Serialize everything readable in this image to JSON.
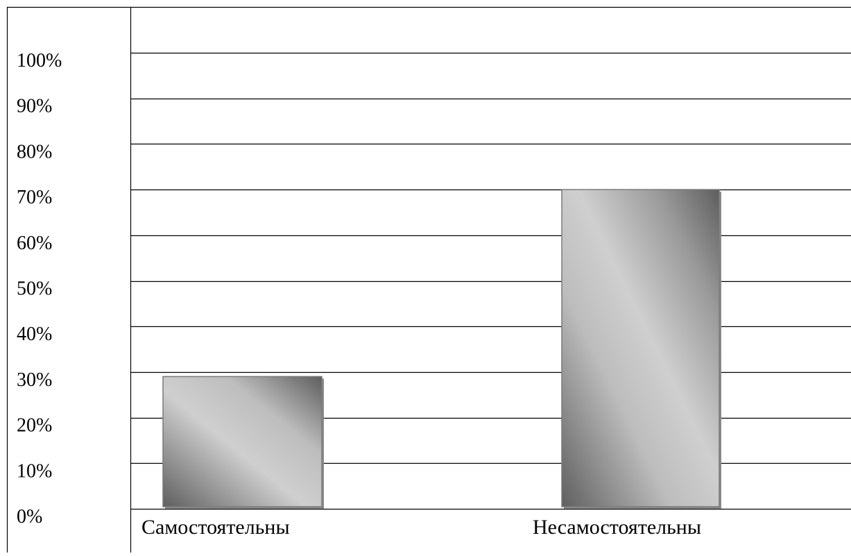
{
  "chart_data": {
    "type": "bar",
    "title": "",
    "xlabel": "",
    "ylabel": "",
    "categories": [
      "Самостоятельны",
      "Несамостоятельны"
    ],
    "values": [
      29,
      70
    ],
    "unit": "%",
    "ylim": [
      0,
      100
    ],
    "ytick_labels": [
      "0%",
      "10%",
      "20%",
      "30%",
      "40%",
      "50%",
      "60%",
      "70%",
      "80%",
      "90%",
      "100%"
    ],
    "grid": true,
    "legend": "none",
    "colors": {
      "bar_light": "#cfcfcf",
      "bar_dark": "#5f5f5f",
      "bar_border": "#7a7a7a",
      "grid": "#000000"
    }
  }
}
